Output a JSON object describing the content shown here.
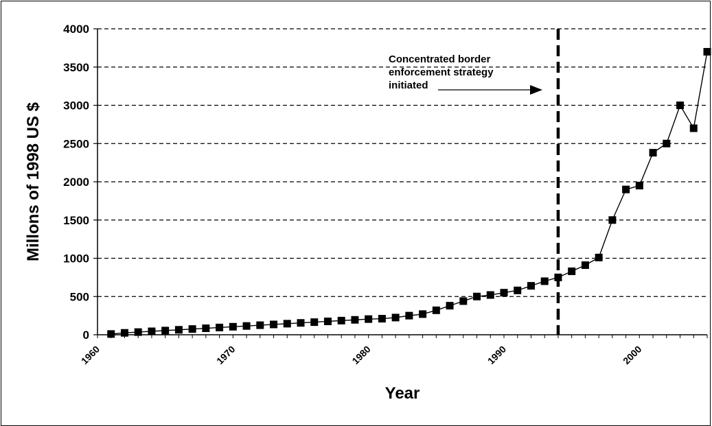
{
  "chart_data": {
    "type": "line",
    "xlabel": "Year",
    "ylabel": "Millons of 1998 US $",
    "xlim": [
      1960,
      2005
    ],
    "ylim": [
      0,
      4000
    ],
    "x_ticks": [
      "1960",
      "1970",
      "1980",
      "1990",
      "2000"
    ],
    "y_ticks": [
      "0",
      "500",
      "1000",
      "1500",
      "2000",
      "2500",
      "3000",
      "3500",
      "4000"
    ],
    "grid": "horizontal dashed",
    "marker": "square",
    "color": "#000000",
    "x": [
      1961,
      1962,
      1963,
      1964,
      1965,
      1966,
      1967,
      1968,
      1969,
      1970,
      1971,
      1972,
      1973,
      1974,
      1975,
      1976,
      1977,
      1978,
      1979,
      1980,
      1981,
      1982,
      1983,
      1984,
      1985,
      1986,
      1987,
      1988,
      1989,
      1990,
      1991,
      1992,
      1993,
      1994,
      1995,
      1996,
      1997,
      1998,
      1999,
      2000,
      2001,
      2002,
      2003,
      2004,
      2005
    ],
    "y": [
      10,
      25,
      35,
      45,
      55,
      65,
      75,
      85,
      95,
      105,
      115,
      125,
      135,
      145,
      155,
      165,
      175,
      185,
      195,
      205,
      210,
      225,
      250,
      270,
      320,
      380,
      440,
      500,
      520,
      550,
      580,
      640,
      700,
      750,
      830,
      910,
      1010,
      1500,
      1900,
      1950,
      2380,
      2500,
      3000,
      2700,
      3700
    ],
    "reference_line": {
      "x": 1994,
      "style": "dashed"
    },
    "annotation": {
      "lines": [
        "Concentrated border",
        "enforcement strategy",
        "initiated"
      ],
      "arrow": "right"
    }
  }
}
